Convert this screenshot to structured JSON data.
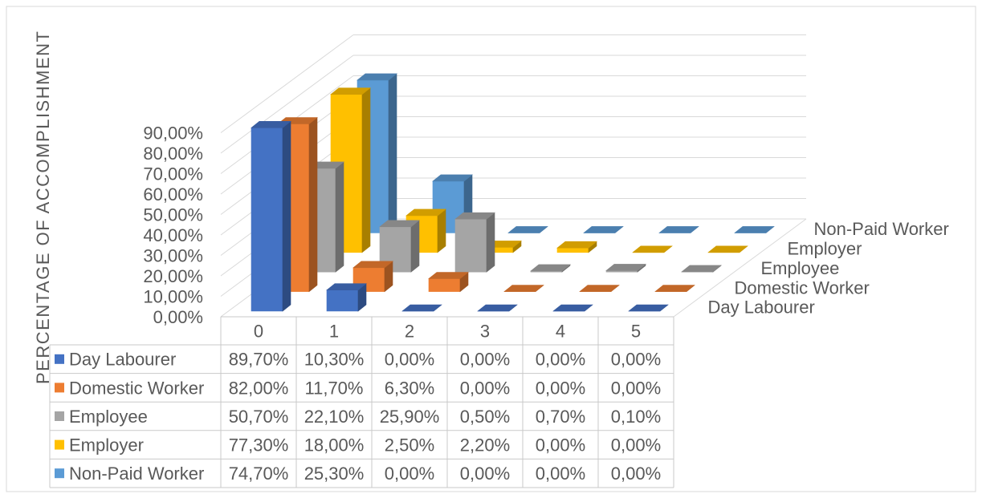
{
  "chart_data": {
    "type": "bar",
    "style": "3d-column",
    "categories": [
      "0",
      "1",
      "2",
      "3",
      "4",
      "5"
    ],
    "ylabel": "PERCENTAGE OF ACCOMPLISHMENT",
    "ylim": [
      0,
      90
    ],
    "yticks": [
      "0,00%",
      "10,00%",
      "20,00%",
      "30,00%",
      "40,00%",
      "50,00%",
      "60,00%",
      "70,00%",
      "80,00%",
      "90,00%"
    ],
    "grid": true,
    "legend": "bottom",
    "series": [
      {
        "name": "Day Labourer",
        "color": "#4472C4",
        "values": [
          89.7,
          10.3,
          0,
          0,
          0,
          0
        ],
        "labels": [
          "89,70%",
          "10,30%",
          "0,00%",
          "0,00%",
          "0,00%",
          "0,00%"
        ]
      },
      {
        "name": "Domestic Worker",
        "color": "#ED7D31",
        "values": [
          82.0,
          11.7,
          6.3,
          0,
          0,
          0
        ],
        "labels": [
          "82,00%",
          "11,70%",
          "6,30%",
          "0,00%",
          "0,00%",
          "0,00%"
        ]
      },
      {
        "name": "Employee",
        "color": "#A5A5A5",
        "values": [
          50.7,
          22.1,
          25.9,
          0.5,
          0.7,
          0.1
        ],
        "labels": [
          "50,70%",
          "22,10%",
          "25,90%",
          "0,50%",
          "0,70%",
          "0,10%"
        ]
      },
      {
        "name": "Employer",
        "color": "#FFC000",
        "values": [
          77.3,
          18.0,
          2.5,
          2.2,
          0,
          0
        ],
        "labels": [
          "77,30%",
          "18,00%",
          "2,50%",
          "2,20%",
          "0,00%",
          "0,00%"
        ]
      },
      {
        "name": "Non-Paid Worker",
        "color": "#5B9BD5",
        "values": [
          74.7,
          25.3,
          0,
          0,
          0,
          0
        ],
        "labels": [
          "74,70%",
          "25,30%",
          "0,00%",
          "0,00%",
          "0,00%",
          "0,00%"
        ]
      }
    ]
  }
}
